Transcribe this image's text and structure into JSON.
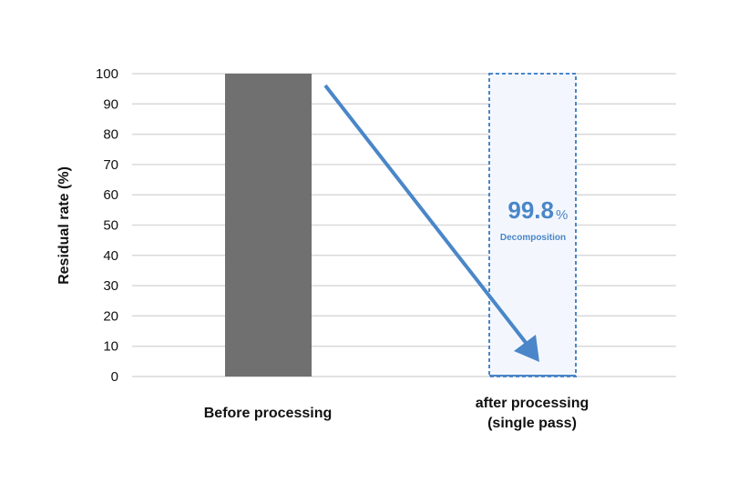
{
  "chart_data": {
    "type": "bar",
    "title": "",
    "xlabel": "",
    "ylabel": "Residual rate (%)",
    "ylim": [
      0,
      100
    ],
    "yticks": [
      0,
      10,
      20,
      30,
      40,
      50,
      60,
      70,
      80,
      90,
      100
    ],
    "grid": true,
    "categories": [
      {
        "line1": "Before processing",
        "line2": ""
      },
      {
        "line1": "after processing",
        "line2": "(single pass)"
      }
    ],
    "values": [
      100,
      0.2
    ],
    "annotation": {
      "value": "99.8",
      "unit": "%",
      "label": "Decomposition"
    },
    "colors": {
      "before": "#707070",
      "after": "#4a86c8",
      "highlight_fill": "#f3f7fd",
      "grid": "#d9d9d9"
    }
  }
}
